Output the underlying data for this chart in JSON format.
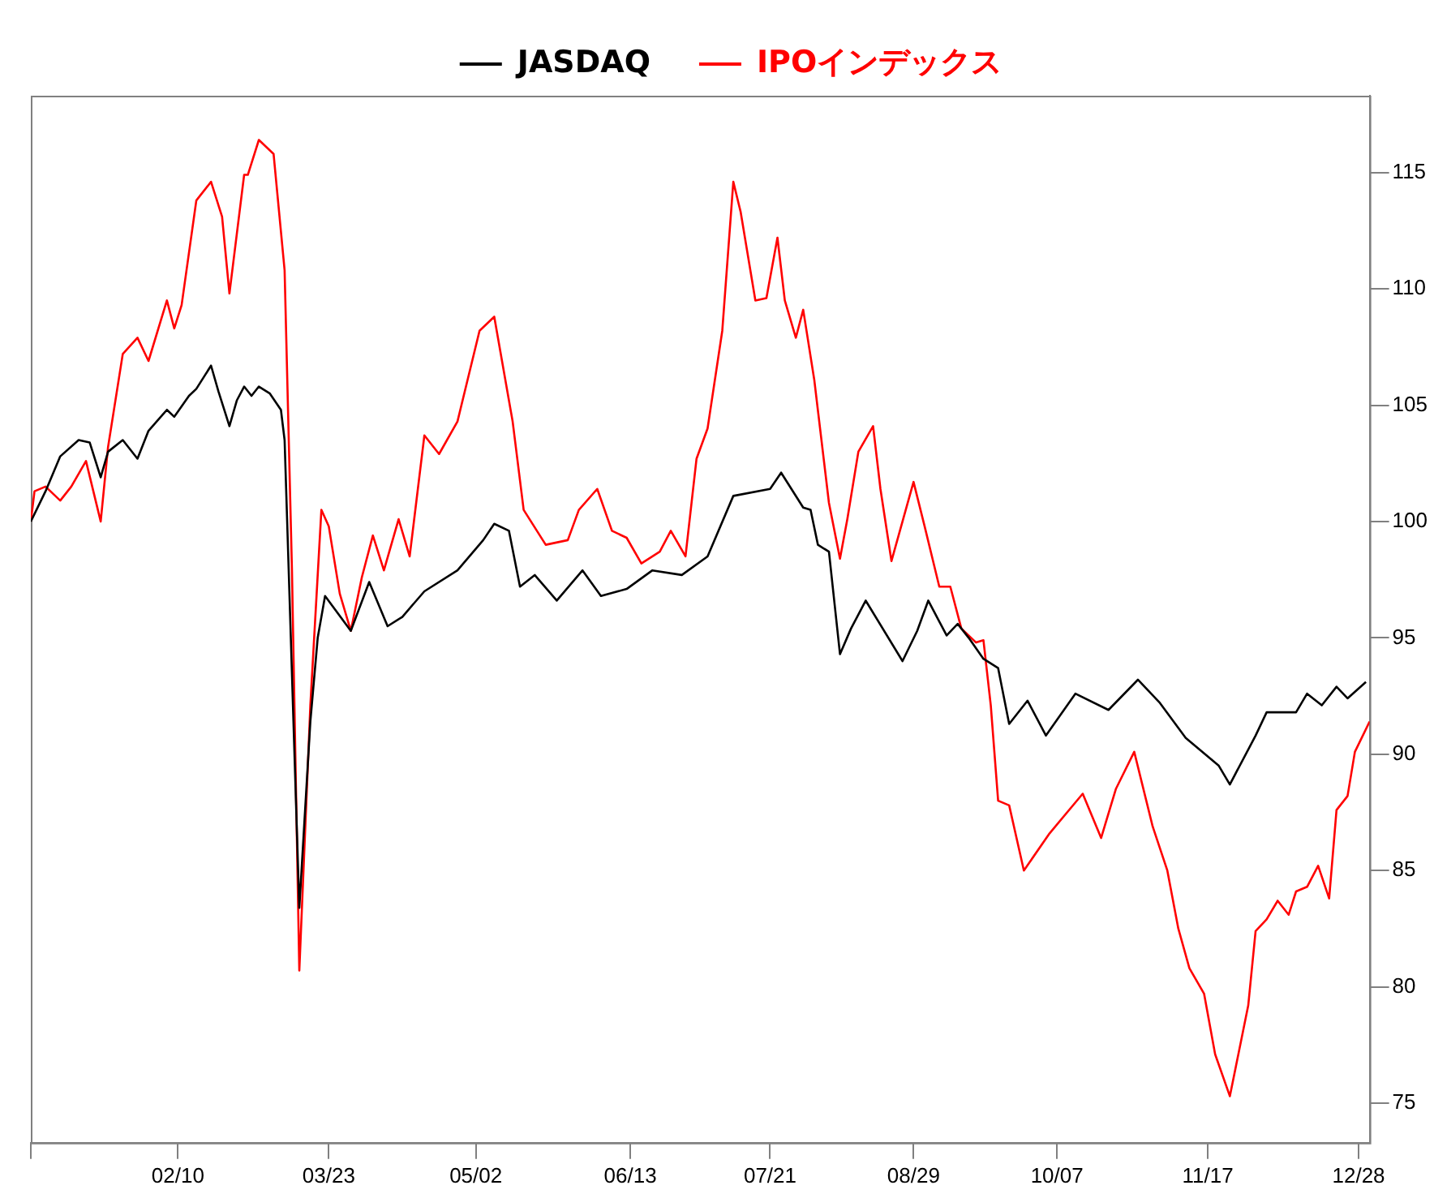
{
  "chart_data": {
    "type": "line",
    "legend": "top",
    "grid": false,
    "marker": "none",
    "line_style": "solid",
    "xlim": [
      "--01-01",
      "--12-31"
    ],
    "xticks": [
      {
        "value": "--01-01",
        "label": null
      },
      {
        "value": "--02-10",
        "label": "02/10"
      },
      {
        "value": "--03-23",
        "label": "03/23"
      },
      {
        "value": "--05-02",
        "label": "05/02"
      },
      {
        "value": "--06-13",
        "label": "06/13"
      },
      {
        "value": "--07-21",
        "label": "07/21"
      },
      {
        "value": "--08-29",
        "label": "08/29"
      },
      {
        "value": "--10-07",
        "label": "10/07"
      },
      {
        "value": "--11-17",
        "label": "11/17"
      },
      {
        "value": "--12-28",
        "label": "12/28"
      }
    ],
    "ylim": [
      73.3,
      118.3
    ],
    "yticks": [
      75,
      80,
      85,
      90,
      95,
      100,
      105,
      110,
      115
    ],
    "series": [
      {
        "name": "JASDAQ",
        "color": "#000000",
        "x": [
          "--01-01",
          "--01-05",
          "--01-09",
          "--01-14",
          "--01-17",
          "--01-20",
          "--01-22",
          "--01-26",
          "--01-30",
          "--02-02",
          "--02-07",
          "--02-09",
          "--02-13",
          "--02-15",
          "--02-19",
          "--02-21",
          "--02-24",
          "--02-26",
          "--02-28",
          "--03-02",
          "--03-04",
          "--03-07",
          "--03-10",
          "--03-11",
          "--03-15",
          "--03-18",
          "--03-20",
          "--03-22",
          "--03-29",
          "--04-03",
          "--04-08",
          "--04-12",
          "--04-18",
          "--04-27",
          "--05-04",
          "--05-07",
          "--05-11",
          "--05-14",
          "--05-18",
          "--05-24",
          "--05-31",
          "--06-05",
          "--06-12",
          "--06-19",
          "--06-27",
          "--07-04",
          "--07-11",
          "--07-21",
          "--07-24",
          "--07-30",
          "--08-01",
          "--08-03",
          "--08-06",
          "--08-09",
          "--08-12",
          "--08-16",
          "--08-26",
          "--08-30",
          "--09-02",
          "--09-07",
          "--09-10",
          "--09-13",
          "--09-17",
          "--09-21",
          "--09-24",
          "--09-29",
          "--10-04",
          "--10-12",
          "--10-21",
          "--10-29",
          "--11-04",
          "--11-11",
          "--11-20",
          "--11-23",
          "--11-30",
          "--12-03",
          "--12-11",
          "--12-14",
          "--12-18",
          "--12-22",
          "--12-25",
          "--12-30"
        ],
        "values": [
          100,
          101.3,
          102.8,
          103.5,
          103.4,
          101.9,
          103,
          103.5,
          102.7,
          103.9,
          104.8,
          104.5,
          105.4,
          105.7,
          106.7,
          105.6,
          104.1,
          105.2,
          105.8,
          105.4,
          105.8,
          105.5,
          104.8,
          103.5,
          83.4,
          91.4,
          95,
          96.8,
          95.3,
          97.4,
          95.5,
          95.9,
          97,
          97.9,
          99.2,
          99.9,
          99.6,
          97.2,
          97.7,
          96.6,
          97.9,
          96.8,
          97.1,
          97.9,
          97.7,
          98.5,
          101.1,
          101.4,
          102.1,
          100.6,
          100.5,
          99,
          98.7,
          94.3,
          95.4,
          96.6,
          94,
          95.3,
          96.6,
          95.1,
          95.6,
          95,
          94.1,
          93.7,
          91.3,
          92.3,
          90.8,
          92.6,
          91.9,
          93.2,
          92.2,
          90.7,
          89.5,
          88.7,
          90.8,
          91.8,
          91.8,
          92.6,
          92.1,
          92.9,
          92.4,
          93.1
        ]
      },
      {
        "name": "IPOインデックス",
        "color": "#ff0000",
        "x": [
          "--01-01",
          "--01-02",
          "--01-05",
          "--01-09",
          "--01-12",
          "--01-16",
          "--01-20",
          "--01-22",
          "--01-26",
          "--01-30",
          "--02-02",
          "--02-07",
          "--02-09",
          "--02-11",
          "--02-15",
          "--02-19",
          "--02-22",
          "--02-24",
          "--02-28",
          "--03-01",
          "--03-04",
          "--03-08",
          "--03-11",
          "--03-13",
          "--03-15",
          "--03-18",
          "--03-21",
          "--03-23",
          "--03-26",
          "--03-29",
          "--04-01",
          "--04-04",
          "--04-07",
          "--04-11",
          "--04-14",
          "--04-18",
          "--04-22",
          "--04-27",
          "--05-03",
          "--05-07",
          "--05-12",
          "--05-15",
          "--05-21",
          "--05-27",
          "--05-30",
          "--06-04",
          "--06-08",
          "--06-12",
          "--06-16",
          "--06-21",
          "--06-24",
          "--06-28",
          "--07-01",
          "--07-04",
          "--07-08",
          "--07-11",
          "--07-13",
          "--07-17",
          "--07-20",
          "--07-23",
          "--07-25",
          "--07-28",
          "--07-30",
          "--08-02",
          "--08-06",
          "--08-09",
          "--08-11",
          "--08-14",
          "--08-18",
          "--08-20",
          "--08-23",
          "--08-29",
          "--09-01",
          "--09-05",
          "--09-08",
          "--09-11",
          "--09-15",
          "--09-17",
          "--09-19",
          "--09-21",
          "--09-24",
          "--09-28",
          "--10-05",
          "--10-14",
          "--10-19",
          "--10-23",
          "--10-28",
          "--11-02",
          "--11-06",
          "--11-09",
          "--11-12",
          "--11-16",
          "--11-19",
          "--11-23",
          "--11-28",
          "--11-30",
          "--12-03",
          "--12-06",
          "--12-09",
          "--12-11",
          "--12-14",
          "--12-17",
          "--12-20",
          "--12-22",
          "--12-25",
          "--12-27",
          "--12-31"
        ],
        "values": [
          100,
          101.3,
          101.5,
          100.9,
          101.5,
          102.6,
          100,
          103.2,
          107.2,
          107.9,
          106.9,
          109.5,
          108.3,
          109.3,
          113.8,
          114.6,
          113.1,
          109.8,
          114.9,
          114.9,
          116.4,
          115.8,
          110.8,
          97.9,
          80.7,
          92.1,
          100.5,
          99.8,
          96.9,
          95.3,
          97.6,
          99.4,
          97.9,
          100.1,
          98.5,
          103.7,
          102.9,
          104.3,
          108.2,
          108.8,
          104.3,
          100.5,
          99,
          99.2,
          100.5,
          101.4,
          99.6,
          99.3,
          98.2,
          98.7,
          99.6,
          98.5,
          102.7,
          104,
          108.2,
          114.6,
          113.3,
          109.5,
          109.6,
          112.2,
          109.5,
          107.9,
          109.1,
          106.1,
          100.8,
          98.4,
          100.1,
          103,
          104.1,
          101.4,
          98.3,
          101.7,
          99.8,
          97.2,
          97.2,
          95.4,
          94.8,
          94.9,
          92.1,
          88,
          87.8,
          85,
          86.6,
          88.3,
          86.4,
          88.5,
          90.1,
          86.9,
          85,
          82.5,
          80.8,
          79.7,
          77.1,
          75.3,
          79.2,
          82.4,
          82.9,
          83.7,
          83.1,
          84.1,
          84.3,
          85.2,
          83.8,
          87.6,
          88.2,
          90.1,
          91.4
        ]
      }
    ]
  }
}
